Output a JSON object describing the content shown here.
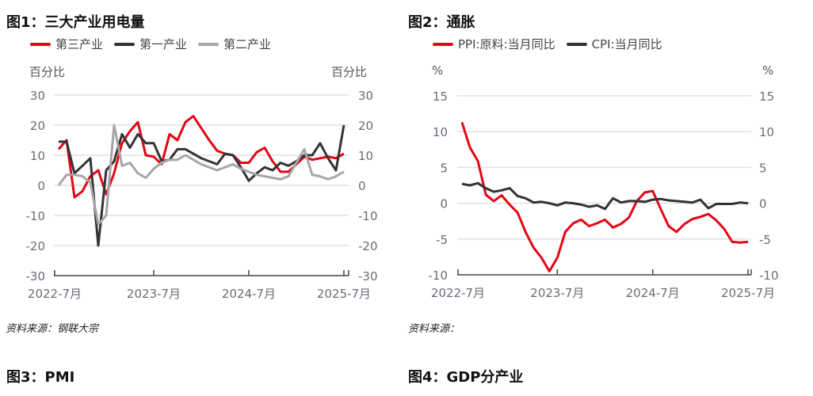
{
  "chart_data": [
    {
      "type": "line",
      "title": "图1：三大产业用电量",
      "ylabel_left": "百分比",
      "ylabel_right": "百分比",
      "ylim": [
        -30,
        30
      ],
      "yticks": [
        30,
        20,
        10,
        0,
        -10,
        -20,
        -30
      ],
      "xticks": [
        "2022-7月",
        "2023-7月",
        "2024-7月",
        "2025-7月"
      ],
      "x_start": "2022-7",
      "x_end": "2025-7",
      "grid": true,
      "legend": "top",
      "series": [
        {
          "name": "第三产业",
          "color": "#e30613",
          "values": [
            12,
            15,
            -4,
            -2,
            3,
            5,
            -3,
            4,
            14,
            18,
            21,
            10,
            9.5,
            7,
            17,
            15,
            21,
            23,
            19,
            15,
            11.5,
            10.5,
            10,
            7.5,
            7.5,
            11,
            12.5,
            8,
            4.5,
            4.5,
            7,
            9.5,
            8.5,
            9,
            9.5,
            9,
            10.5
          ]
        },
        {
          "name": "第一产业",
          "color": "#333333",
          "values": [
            14.5,
            14.5,
            4,
            6.5,
            9,
            -20,
            5,
            8,
            17,
            12.5,
            17,
            14,
            14,
            8,
            8.5,
            12,
            12,
            10.5,
            9,
            8,
            7,
            10.5,
            10,
            6,
            1.5,
            4,
            6,
            5,
            7.5,
            6.5,
            8,
            10,
            10,
            14,
            9,
            5,
            20
          ]
        },
        {
          "name": "第二产业",
          "color": "#a6a6a6",
          "values": [
            0,
            3.5,
            3.5,
            3,
            1,
            -13,
            -10,
            20,
            6.5,
            7.5,
            4,
            2.5,
            5.5,
            7.5,
            8.5,
            8.5,
            10,
            8.5,
            7,
            6,
            5,
            6,
            7,
            5.5,
            4.5,
            3.5,
            3,
            2.5,
            2,
            3,
            7.5,
            12,
            3.5,
            3,
            2,
            3,
            4.5
          ]
        }
      ],
      "source": "资料来源：钢联大宗"
    },
    {
      "type": "line",
      "title": "图2：通胀",
      "ylabel_left": "%",
      "ylabel_right": "%",
      "ylim": [
        -10,
        15
      ],
      "yticks": [
        15,
        10,
        5,
        0,
        -5,
        -10
      ],
      "xticks": [
        "2022-7月",
        "2023-7月",
        "2024-7月",
        "2025-7月"
      ],
      "x_start": "2022-7",
      "x_end": "2025-7",
      "grid": true,
      "legend": "top",
      "series": [
        {
          "name": "PPI:原料:当月同比",
          "color": "#e30613",
          "values": [
            11.3,
            7.8,
            5.9,
            1.2,
            0.3,
            1.1,
            -0.2,
            -1.3,
            -4,
            -6.2,
            -7.6,
            -9.5,
            -7.6,
            -4,
            -2.8,
            -2.3,
            -3.2,
            -2.8,
            -2.3,
            -3.4,
            -2.9,
            -2,
            0.3,
            1.5,
            1.7,
            -0.8,
            -3.2,
            -4,
            -2.9,
            -2.2,
            -1.9,
            -1.5,
            -2.4,
            -3.6,
            -5.4,
            -5.5,
            -5.4
          ]
        },
        {
          "name": "CPI:当月同比",
          "color": "#333333",
          "values": [
            2.7,
            2.5,
            2.8,
            2.1,
            1.6,
            1.8,
            2.1,
            1.0,
            0.7,
            0.1,
            0.2,
            0,
            -0.3,
            0.1,
            0,
            -0.2,
            -0.5,
            -0.3,
            -0.8,
            0.7,
            0.1,
            0.3,
            0.3,
            0.2,
            0.5,
            0.6,
            0.4,
            0.3,
            0.2,
            0.1,
            0.5,
            -0.7,
            -0.1,
            -0.1,
            -0.1,
            0.1,
            0
          ]
        }
      ],
      "source": "资料来源："
    }
  ],
  "next_titles": [
    "图3：PMI",
    "图4：GDP分产业"
  ]
}
